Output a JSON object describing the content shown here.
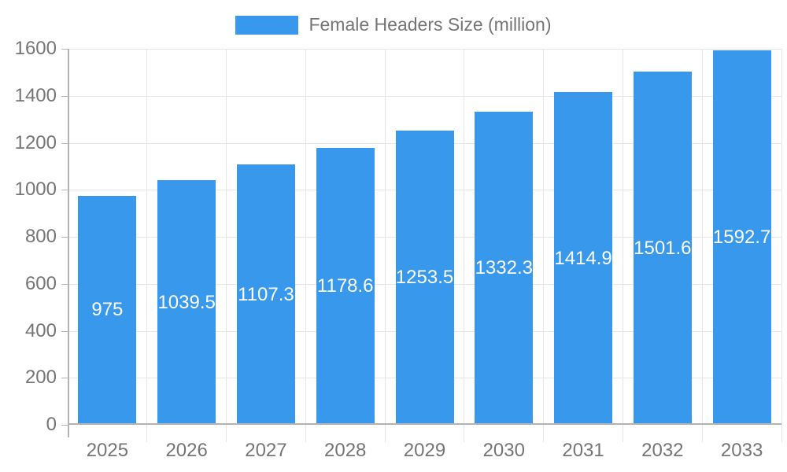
{
  "legend": {
    "label": "Female Headers Size (million)"
  },
  "colors": {
    "bar": "#3898ec",
    "axis": "#b3b3b3",
    "grid": "#e6e6e6",
    "text": "#757575",
    "bar_label": "#ffffff",
    "background": "#ffffff"
  },
  "chart_data": {
    "type": "bar",
    "title": "Female Headers Size (million)",
    "series_name": "Female Headers Size (million)",
    "categories": [
      "2025",
      "2026",
      "2027",
      "2028",
      "2029",
      "2030",
      "2031",
      "2032",
      "2033"
    ],
    "values": [
      975,
      1039.5,
      1107.3,
      1178.6,
      1253.5,
      1332.3,
      1414.9,
      1501.6,
      1592.7
    ],
    "value_labels": [
      "975",
      "1039.5",
      "1107.3",
      "1178.6",
      "1253.5",
      "1332.3",
      "1414.9",
      "1501.6",
      "1592.7"
    ],
    "xlabel": "",
    "ylabel": "",
    "ylim": [
      0,
      1600
    ],
    "y_ticks": [
      0,
      200,
      400,
      600,
      800,
      1000,
      1200,
      1400,
      1600
    ],
    "y_tick_labels": [
      "0",
      "200",
      "400",
      "600",
      "800",
      "1000",
      "1200",
      "1400",
      "1600"
    ],
    "grid": true,
    "legend_position": "top-center",
    "bar_labels_inside": true
  }
}
